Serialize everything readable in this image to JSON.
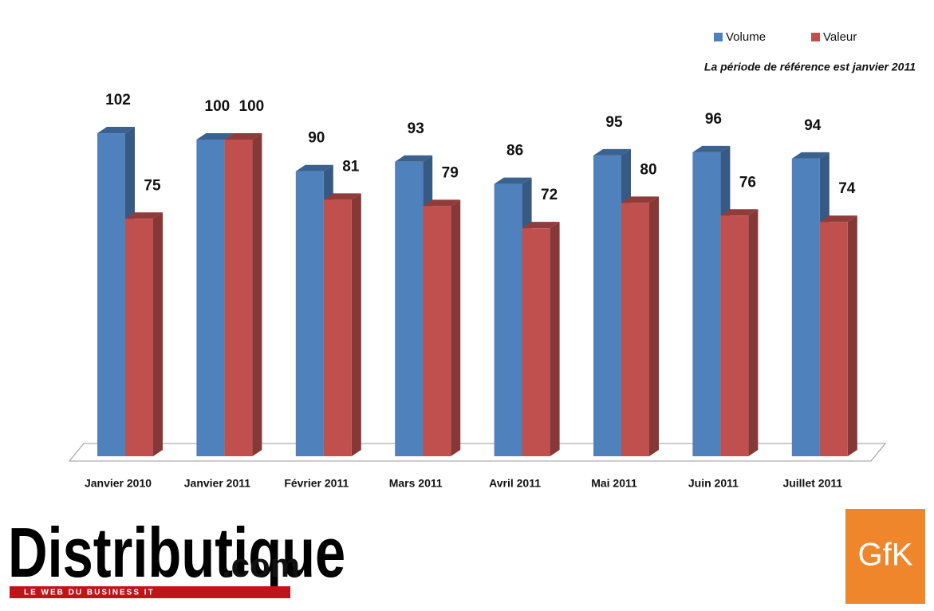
{
  "chart_data": {
    "type": "bar3d",
    "note": "La période de référence est janvier 2011",
    "categories": [
      "Janvier 2010",
      "Janvier 2011",
      "Février 2011",
      "Mars 2011",
      "Avril 2011",
      "Mai 2011",
      "Juin 2011",
      "Juillet 2011"
    ],
    "series": [
      {
        "name": "Volume",
        "color": "#4f81bd",
        "values": [
          102,
          100,
          90,
          93,
          86,
          95,
          96,
          94
        ]
      },
      {
        "name": "Valeur",
        "color": "#c0504d",
        "values": [
          75,
          100,
          81,
          79,
          72,
          80,
          76,
          74
        ]
      }
    ],
    "legend": "top-right"
  },
  "logos": [
    "Distributique",
    ".com",
    "LE WEB DU BUSINESS IT",
    "GfK"
  ]
}
